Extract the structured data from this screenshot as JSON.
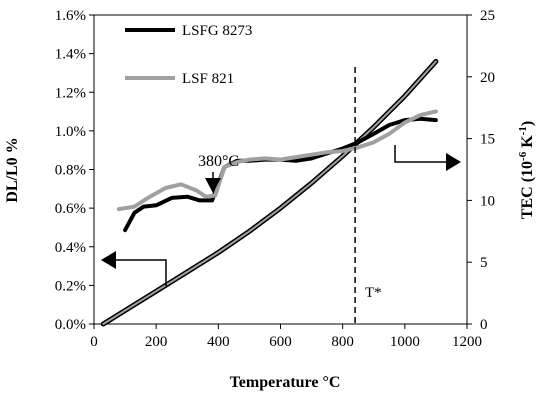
{
  "chart_data": {
    "type": "line",
    "xlabel": "Temperature °C",
    "ylabel_left": "DL/L0 %",
    "ylabel_right_main": "TEC (10",
    "ylabel_right_sup1": "-6",
    "ylabel_right_mid": " K",
    "ylabel_right_sup2": "-1",
    "ylabel_right_end": ")",
    "xlim": [
      0,
      1200
    ],
    "ylim_left": [
      0.0,
      1.6
    ],
    "ylim_right": [
      0,
      25
    ],
    "x_ticks": [
      "0",
      "200",
      "400",
      "600",
      "800",
      "1000",
      "1200"
    ],
    "y_left_ticks": [
      "0.0%",
      "0.2%",
      "0.4%",
      "0.6%",
      "0.8%",
      "1.0%",
      "1.2%",
      "1.4%",
      "1.6%"
    ],
    "y_right_ticks": [
      "0",
      "5",
      "10",
      "15",
      "20",
      "25"
    ],
    "grid": false,
    "series": [
      {
        "name": "LSFG 8273",
        "color": "#000000",
        "axis": "left",
        "x": [
          30,
          100,
          200,
          300,
          400,
          500,
          600,
          700,
          800,
          900,
          1000,
          1100
        ],
        "values": [
          0.0,
          0.07,
          0.17,
          0.27,
          0.37,
          0.48,
          0.6,
          0.73,
          0.87,
          1.02,
          1.18,
          1.36
        ]
      },
      {
        "name": "LSF 821",
        "color": "#a0a0a0",
        "axis": "left",
        "x": [
          30,
          100,
          200,
          300,
          400,
          500,
          600,
          700,
          800,
          900,
          1000,
          1100
        ],
        "values": [
          0.0,
          0.07,
          0.17,
          0.27,
          0.37,
          0.48,
          0.6,
          0.73,
          0.87,
          1.02,
          1.18,
          1.36
        ]
      },
      {
        "name": "LSFG 8273",
        "color": "#000000",
        "axis": "right",
        "x": [
          100,
          130,
          160,
          200,
          250,
          300,
          340,
          380,
          420,
          460,
          500,
          550,
          600,
          650,
          700,
          750,
          800,
          850,
          900,
          950,
          1000,
          1050,
          1100
        ],
        "values": [
          7.6,
          9.0,
          9.5,
          9.6,
          10.2,
          10.3,
          10.0,
          10.0,
          12.7,
          13.2,
          13.2,
          13.3,
          13.3,
          13.2,
          13.4,
          13.8,
          14.2,
          14.7,
          15.4,
          16.1,
          16.5,
          16.6,
          16.5
        ]
      },
      {
        "name": "LSF 821",
        "color": "#a0a0a0",
        "axis": "right",
        "x": [
          80,
          130,
          180,
          230,
          280,
          330,
          360,
          390,
          420,
          460,
          500,
          550,
          600,
          650,
          700,
          750,
          800,
          850,
          900,
          950,
          1000,
          1050,
          1100
        ],
        "values": [
          9.3,
          9.5,
          10.3,
          11.0,
          11.3,
          10.8,
          10.3,
          10.4,
          12.7,
          13.1,
          13.3,
          13.4,
          13.3,
          13.5,
          13.7,
          13.9,
          14.0,
          14.3,
          14.7,
          15.4,
          16.3,
          16.9,
          17.2
        ]
      }
    ],
    "legend": {
      "placement": "top-left",
      "entries": [
        "LSFG 8273",
        "LSF 821"
      ]
    },
    "annotations": {
      "peak_label": "380°C",
      "t_star_label": "T*",
      "t_star_x": 840,
      "left_arrow_target": "left axis",
      "right_arrow_target": "right axis"
    }
  }
}
